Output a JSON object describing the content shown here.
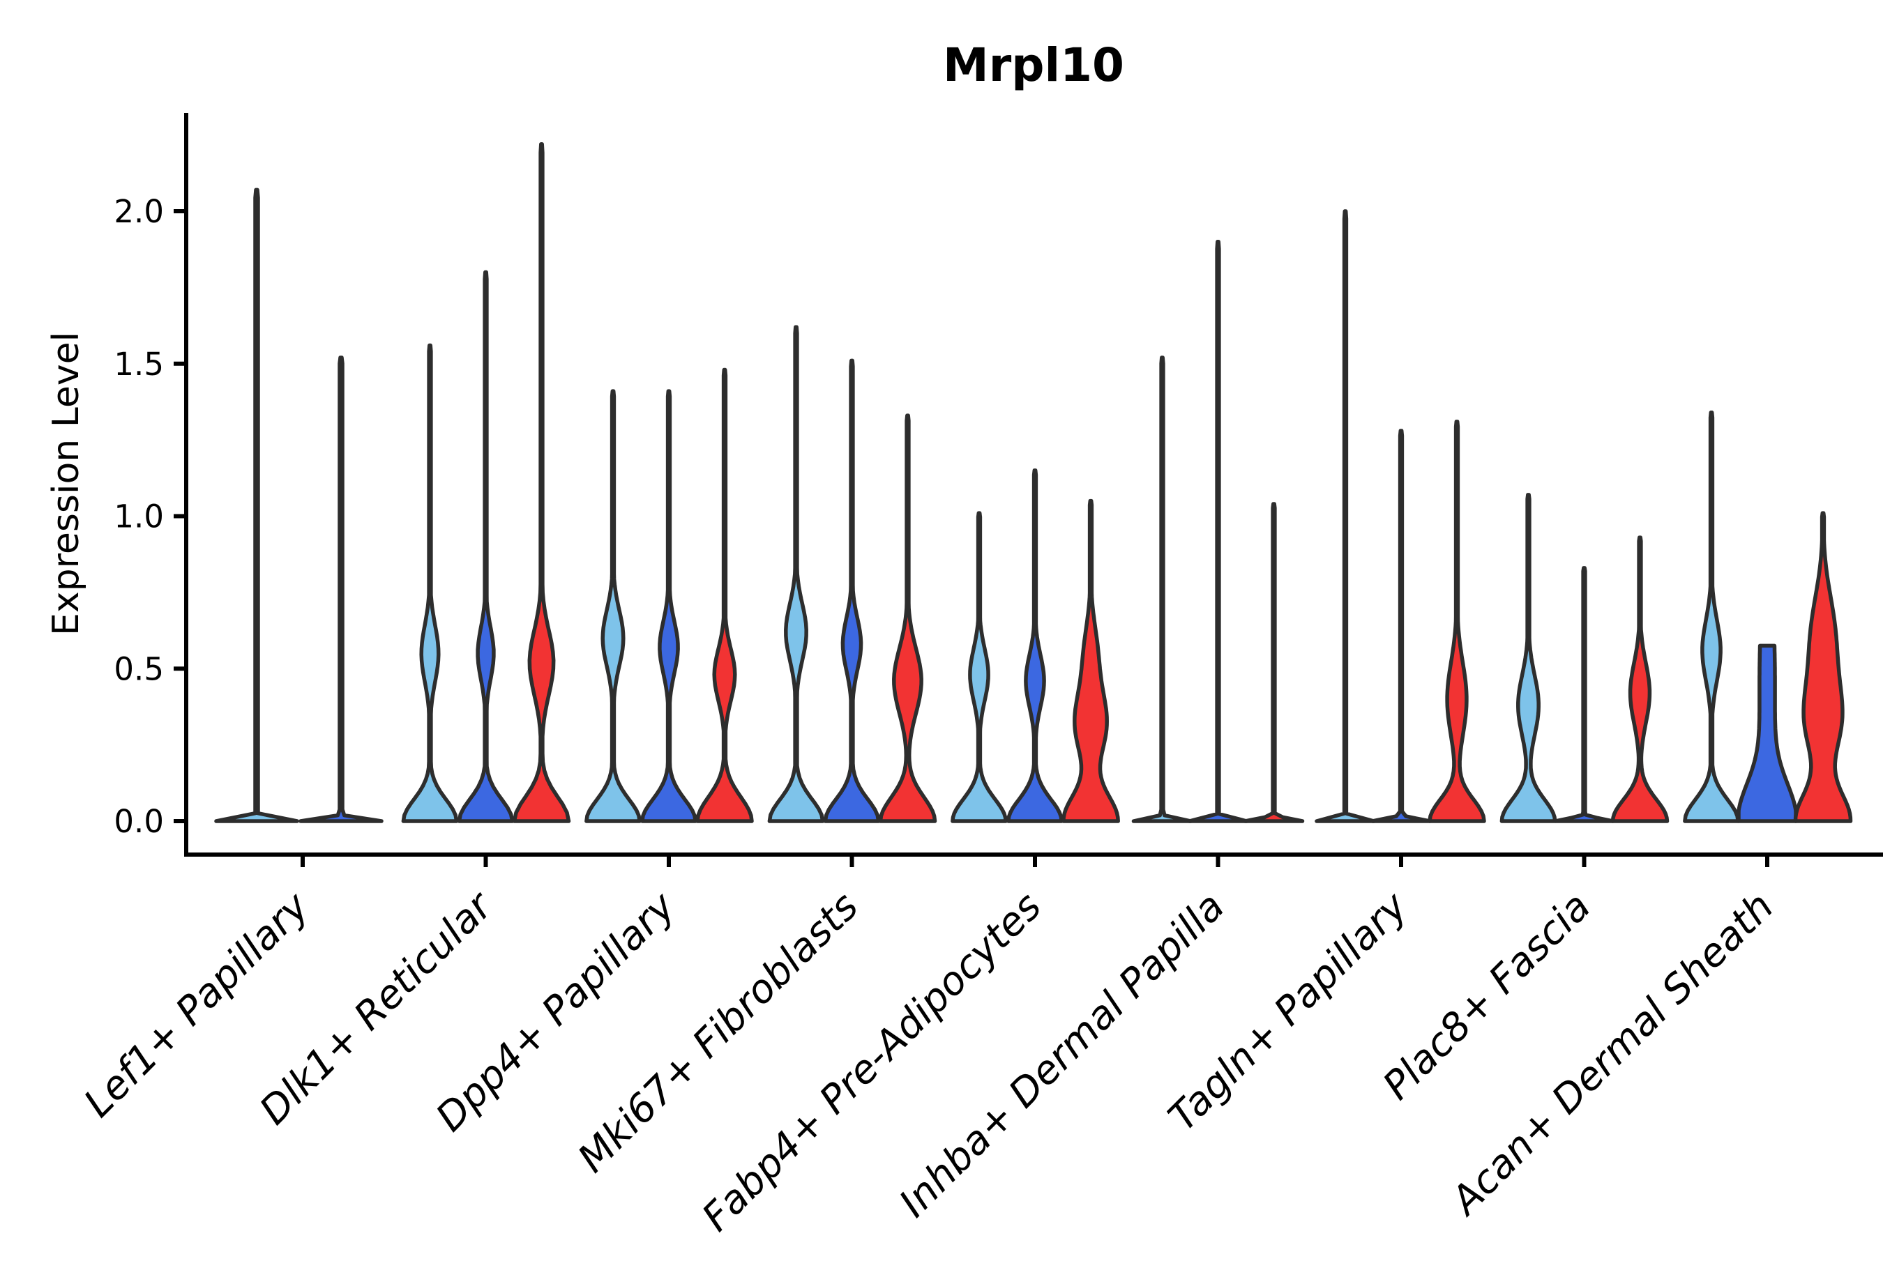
{
  "title": "Mrpl10",
  "y_axis": {
    "label": "Expression Level",
    "ticks": [
      {
        "label": "0.0",
        "value": 0.0
      },
      {
        "label": "0.5",
        "value": 0.5
      },
      {
        "label": "1.0",
        "value": 1.0
      },
      {
        "label": "1.5",
        "value": 1.5
      },
      {
        "label": "2.0",
        "value": 2.0
      }
    ]
  },
  "x_axis": {
    "categories": [
      "Lef1+ Papillary",
      "Dlk1+ Reticular",
      "Dpp4+ Papillary",
      "Mki67+ Fibroblasts",
      "Fabp4+ Pre-Adipocytes",
      "Inhba+ Dermal Papilla",
      "Tagln+ Papillary",
      "Plac8+ Fascia",
      "Acan+ Dermal Sheath"
    ]
  },
  "palette": {
    "sky_blue": "#7EC3EA",
    "royal_blue": "#3C68E1",
    "red": "#F23333",
    "outline": "#2D2D2D",
    "text": "#000000",
    "background": "#FFFFFF"
  },
  "chart_data": {
    "type": "violin",
    "title": "Mrpl10",
    "xlabel": "",
    "ylabel": "Expression Level",
    "ylim": [
      0,
      2.32
    ],
    "yticks": [
      0,
      0.5,
      1.0,
      1.5,
      2.0
    ],
    "grid": false,
    "legend": "none",
    "split_colors": [
      "sky_blue",
      "royal_blue",
      "red"
    ],
    "note": "Each category shows up to three split violins (sky blue, royal blue, red). 'max' is the top of each violin/spike in expression units; collapsed violins are flat lines at 0 with a thin spike.",
    "groups": [
      {
        "category": "Lef1+ Papillary",
        "violins": [
          {
            "color": "sky_blue",
            "max": 2.07,
            "collapsed": true,
            "dx": -66,
            "half": 58
          },
          {
            "color": "royal_blue",
            "max": 1.52,
            "collapsed": true,
            "dx": 55,
            "half": 58
          }
        ]
      },
      {
        "category": "Dlk1+ Reticular",
        "violins": [
          {
            "color": "sky_blue",
            "max": 1.56,
            "base": [
              0.93,
              0.1
            ],
            "bulges": [
              [
                0.3,
                0.55,
                0.13
              ]
            ]
          },
          {
            "color": "royal_blue",
            "max": 1.8,
            "base": [
              0.93,
              0.1
            ],
            "bulges": [
              [
                0.28,
                0.55,
                0.12
              ]
            ]
          },
          {
            "color": "red",
            "max": 2.22,
            "base": [
              0.95,
              0.11
            ],
            "bulges": [
              [
                0.42,
                0.52,
                0.15
              ]
            ]
          }
        ]
      },
      {
        "category": "Dpp4+ Papillary",
        "violins": [
          {
            "color": "sky_blue",
            "max": 1.41,
            "base": [
              0.93,
              0.1
            ],
            "bulges": [
              [
                0.36,
                0.6,
                0.13
              ]
            ]
          },
          {
            "color": "royal_blue",
            "max": 1.41,
            "base": [
              0.93,
              0.1
            ],
            "bulges": [
              [
                0.32,
                0.57,
                0.12
              ]
            ]
          },
          {
            "color": "red",
            "max": 1.48,
            "base": [
              0.95,
              0.11
            ],
            "bulges": [
              [
                0.36,
                0.48,
                0.12
              ]
            ]
          }
        ]
      },
      {
        "category": "Mki67+ Fibroblasts",
        "violins": [
          {
            "color": "sky_blue",
            "max": 1.62,
            "base": [
              0.93,
              0.1
            ],
            "bulges": [
              [
                0.36,
                0.62,
                0.13
              ]
            ]
          },
          {
            "color": "royal_blue",
            "max": 1.51,
            "base": [
              0.93,
              0.1
            ],
            "bulges": [
              [
                0.32,
                0.58,
                0.12
              ]
            ]
          },
          {
            "color": "red",
            "max": 1.33,
            "base": [
              0.95,
              0.11
            ],
            "bulges": [
              [
                0.48,
                0.46,
                0.15
              ]
            ]
          }
        ]
      },
      {
        "category": "Fabp4+ Pre-Adipocytes",
        "violins": [
          {
            "color": "sky_blue",
            "max": 1.01,
            "base": [
              0.93,
              0.1
            ],
            "bulges": [
              [
                0.32,
                0.48,
                0.12
              ]
            ]
          },
          {
            "color": "royal_blue",
            "max": 1.15,
            "base": [
              0.93,
              0.1
            ],
            "bulges": [
              [
                0.32,
                0.46,
                0.12
              ]
            ]
          },
          {
            "color": "red",
            "max": 1.05,
            "base": [
              0.95,
              0.12
            ],
            "bulges": [
              [
                0.55,
                0.32,
                0.15
              ],
              [
                0.22,
                0.55,
                0.14
              ]
            ]
          }
        ]
      },
      {
        "category": "Inhba+ Dermal Papilla",
        "violins": [
          {
            "color": "sky_blue",
            "max": 1.52,
            "collapsed": true
          },
          {
            "color": "royal_blue",
            "max": 1.9,
            "collapsed": true
          },
          {
            "color": "red",
            "max": 1.04,
            "collapsed": true
          }
        ]
      },
      {
        "category": "Tagln+ Papillary",
        "violins": [
          {
            "color": "sky_blue",
            "max": 2.0,
            "collapsed": true
          },
          {
            "color": "royal_blue",
            "max": 1.28,
            "collapsed": true
          },
          {
            "color": "red",
            "max": 1.31,
            "base": [
              0.95,
              0.1
            ],
            "bulges": [
              [
                0.34,
                0.4,
                0.17
              ]
            ]
          }
        ]
      },
      {
        "category": "Plac8+ Fascia",
        "violins": [
          {
            "color": "sky_blue",
            "max": 1.07,
            "base": [
              0.93,
              0.1
            ],
            "bulges": [
              [
                0.36,
                0.38,
                0.14
              ]
            ]
          },
          {
            "color": "royal_blue",
            "max": 0.83,
            "collapsed": true
          },
          {
            "color": "red",
            "max": 0.93,
            "base": [
              0.95,
              0.1
            ],
            "bulges": [
              [
                0.34,
                0.42,
                0.14
              ]
            ]
          }
        ]
      },
      {
        "category": "Acan+ Dermal Sheath",
        "violins": [
          {
            "color": "sky_blue",
            "max": 1.34,
            "base": [
              0.93,
              0.1
            ],
            "bulges": [
              [
                0.32,
                0.56,
                0.14
              ]
            ]
          },
          {
            "color": "royal_blue",
            "max": 0.575,
            "flat_top": true,
            "base": [
              0.9,
              0.17
            ],
            "bulges": [
              [
                0.27,
                0.45,
                0.5
              ]
            ]
          },
          {
            "color": "red",
            "max": 1.01,
            "base": [
              0.95,
              0.13
            ],
            "bulges": [
              [
                0.6,
                0.33,
                0.17
              ],
              [
                0.42,
                0.6,
                0.2
              ]
            ]
          }
        ]
      }
    ]
  }
}
